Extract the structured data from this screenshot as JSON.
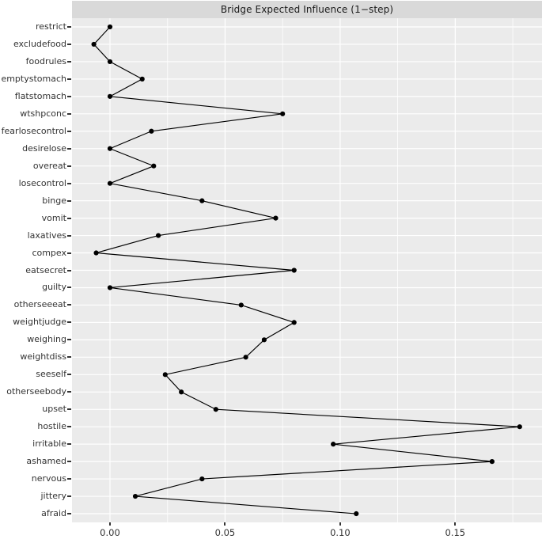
{
  "figure": {
    "title": "Bridge Expected Influence (1−step)"
  },
  "chart_data": {
    "type": "line",
    "orientation": "horizontal-category",
    "title": "Bridge Expected Influence (1−step)",
    "categories": [
      "restrict",
      "excludefood",
      "foodrules",
      "emptystomach",
      "flatstomach",
      "wtshpconc",
      "fearlosecontrol",
      "desirelose",
      "overeat",
      "losecontrol",
      "binge",
      "vomit",
      "laxatives",
      "compex",
      "eatsecret",
      "guilty",
      "otherseeeat",
      "weightjudge",
      "weighing",
      "weightdiss",
      "seeself",
      "otherseebody",
      "upset",
      "hostile",
      "irritable",
      "ashamed",
      "nervous",
      "jittery",
      "afraid"
    ],
    "values": [
      0.0,
      -0.007,
      0.0,
      0.014,
      0.0,
      0.075,
      0.018,
      0.0,
      0.019,
      0.0,
      0.04,
      0.072,
      0.021,
      -0.006,
      0.08,
      0.0,
      0.057,
      0.08,
      0.067,
      0.059,
      0.024,
      0.031,
      0.046,
      0.178,
      0.097,
      0.166,
      0.04,
      0.011,
      0.107
    ],
    "xlabel": "",
    "ylabel": "",
    "xlim": [
      -0.0165,
      0.1877
    ],
    "x_ticks": [
      0.0,
      0.05,
      0.1,
      0.15
    ],
    "x_tick_labels": [
      "0.00",
      "0.05",
      "0.10",
      "0.15"
    ],
    "x_minor_ticks": [
      0.025,
      0.075,
      0.125,
      0.175
    ],
    "grid": true,
    "legend_position": "none",
    "colors": {
      "panel_bg": "#EBEBEB",
      "strip_bg": "#D9D9D9",
      "grid": "#FFFFFF",
      "line": "#000000",
      "point": "#000000",
      "axis_text": "#333333"
    }
  }
}
